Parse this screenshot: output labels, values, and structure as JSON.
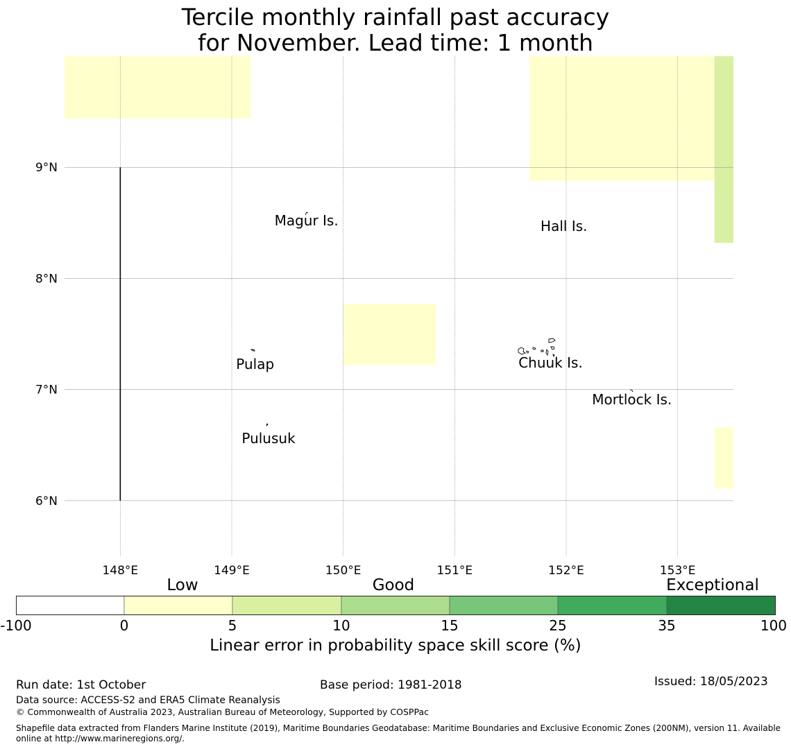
{
  "title_line1": "Tercile monthly rainfall past accuracy",
  "title_line2": "for November. Lead time: 1 month",
  "map": {
    "lon_ticks": [
      {
        "value": 148,
        "label": "148°E"
      },
      {
        "value": 149,
        "label": "149°E"
      },
      {
        "value": 150,
        "label": "150°E"
      },
      {
        "value": 151,
        "label": "151°E"
      },
      {
        "value": 152,
        "label": "152°E"
      },
      {
        "value": 153,
        "label": "153°E"
      }
    ],
    "lat_ticks": [
      {
        "value": 9,
        "label": "9°N"
      },
      {
        "value": 8,
        "label": "8°N"
      },
      {
        "value": 7,
        "label": "7°N"
      },
      {
        "value": 6,
        "label": "6°N"
      }
    ],
    "lon_range": [
      147.5,
      153.5
    ],
    "lat_range": [
      5.5,
      10.0
    ],
    "islands": [
      {
        "name": "Magur Is.",
        "lon": 149.67,
        "lat": 8.52
      },
      {
        "name": "Hall Is.",
        "lon": 151.98,
        "lat": 8.47
      },
      {
        "name": "Pulap",
        "lon": 149.21,
        "lat": 7.23
      },
      {
        "name": "Chuuk Is.",
        "lon": 151.86,
        "lat": 7.24
      },
      {
        "name": "Mortlock Is.",
        "lon": 152.59,
        "lat": 6.91
      },
      {
        "name": "Pulusuk",
        "lon": 149.33,
        "lat": 6.56
      }
    ],
    "skill_cells": [
      {
        "lon_min": 147.5,
        "lon_max": 149.17,
        "lat_min": 9.44,
        "lat_max": 10.0,
        "category": "0-5"
      },
      {
        "lon_min": 151.67,
        "lon_max": 153.33,
        "lat_min": 8.88,
        "lat_max": 10.0,
        "category": "0-5"
      },
      {
        "lon_min": 153.33,
        "lon_max": 153.5,
        "lat_min": 8.32,
        "lat_max": 10.0,
        "category": "5-10"
      },
      {
        "lon_min": 150.0,
        "lon_max": 150.83,
        "lat_min": 7.22,
        "lat_max": 7.77,
        "category": "0-5"
      },
      {
        "lon_min": 153.33,
        "lon_max": 153.5,
        "lat_min": 6.11,
        "lat_max": 6.66,
        "category": "0-5"
      }
    ],
    "boundary_line": {
      "lon": 148.0,
      "lat_start": 6.0,
      "lat_end": 9.0
    }
  },
  "colorbar": {
    "captions": [
      "Low",
      "Good",
      "Exceptional"
    ],
    "ticks": [
      "-100",
      "0",
      "5",
      "10",
      "15",
      "25",
      "35",
      "100"
    ],
    "colors": [
      "#ffffff",
      "#ffffcc",
      "#d9f0a3",
      "#addd8e",
      "#78c679",
      "#41ab5d",
      "#238443"
    ],
    "label": "Linear error in probability space skill score (%)"
  },
  "footer": {
    "run_date": "Run date: 1st October",
    "base_period": "Base period: 1981-2018",
    "issued": "Issued: 18/05/2023",
    "data_source": "Data source: ACCESS-S2 and ERA5 Climate Reanalysis",
    "copyright": "© Commonwealth of Australia 2023, Australian Bureau of Meteorology, Supported by COSPPac",
    "shapefile_line1": "Shapefile data extracted from Flanders Marine Institute (2019), Maritime Boundaries Geodatabase: Maritime Boundaries and Exclusive Economic Zones (200NM), version 11. Available",
    "shapefile_line2": "online at http://www.marineregions.org/."
  }
}
